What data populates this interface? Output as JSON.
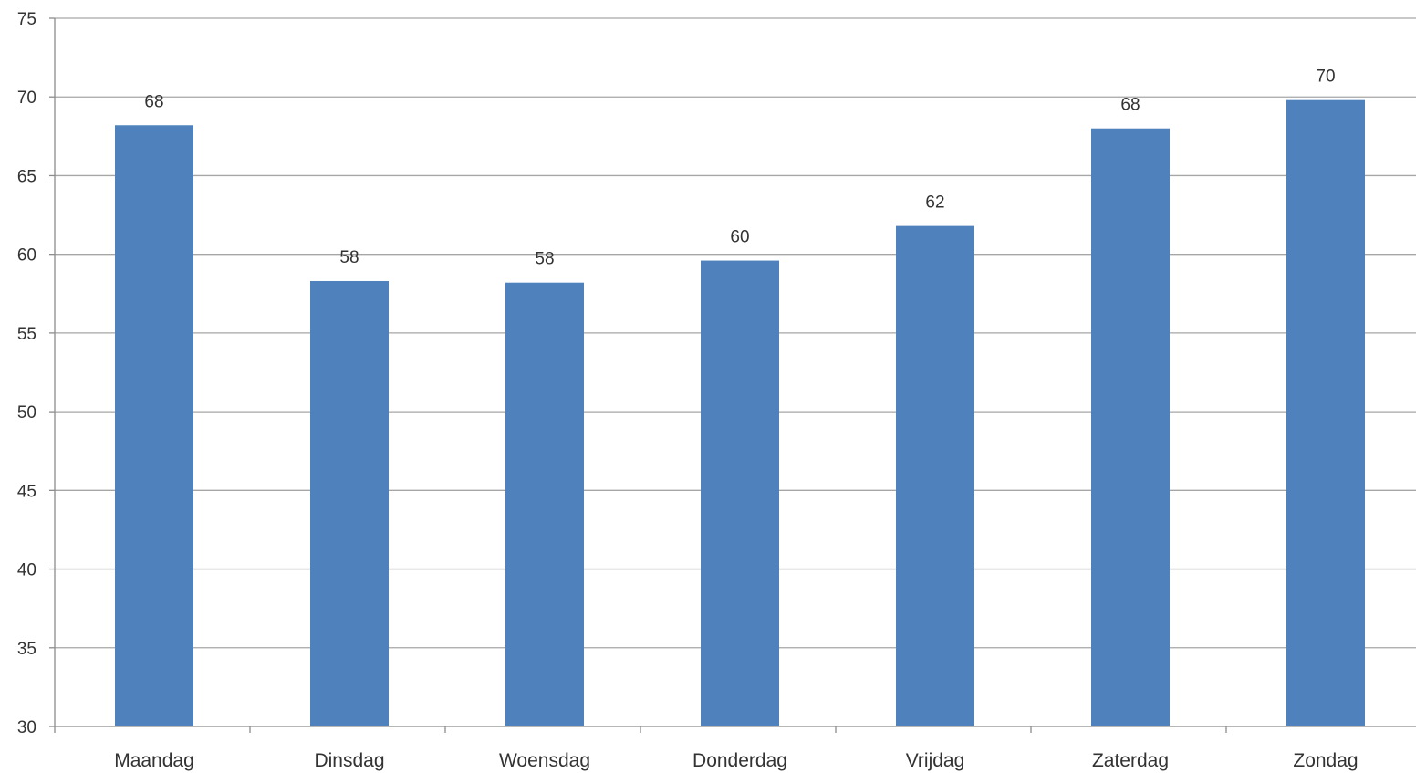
{
  "chart_data": {
    "type": "bar",
    "categories": [
      "Maandag",
      "Dinsdag",
      "Woensdag",
      "Donderdag",
      "Vrijdag",
      "Zaterdag",
      "Zondag"
    ],
    "values": [
      68.2,
      58.3,
      58.2,
      59.6,
      61.8,
      68.0,
      69.8
    ],
    "data_labels": [
      "68",
      "58",
      "58",
      "60",
      "62",
      "68",
      "70"
    ],
    "yticks": [
      "30",
      "35",
      "40",
      "45",
      "50",
      "55",
      "60",
      "65",
      "70",
      "75"
    ],
    "ylim": [
      30,
      75
    ],
    "grid": true,
    "legend": "none",
    "colors": {
      "bar": "#4f81bd",
      "grid": "#a6a6a6",
      "axis": "#8c8c8c",
      "text": "#333333"
    }
  }
}
